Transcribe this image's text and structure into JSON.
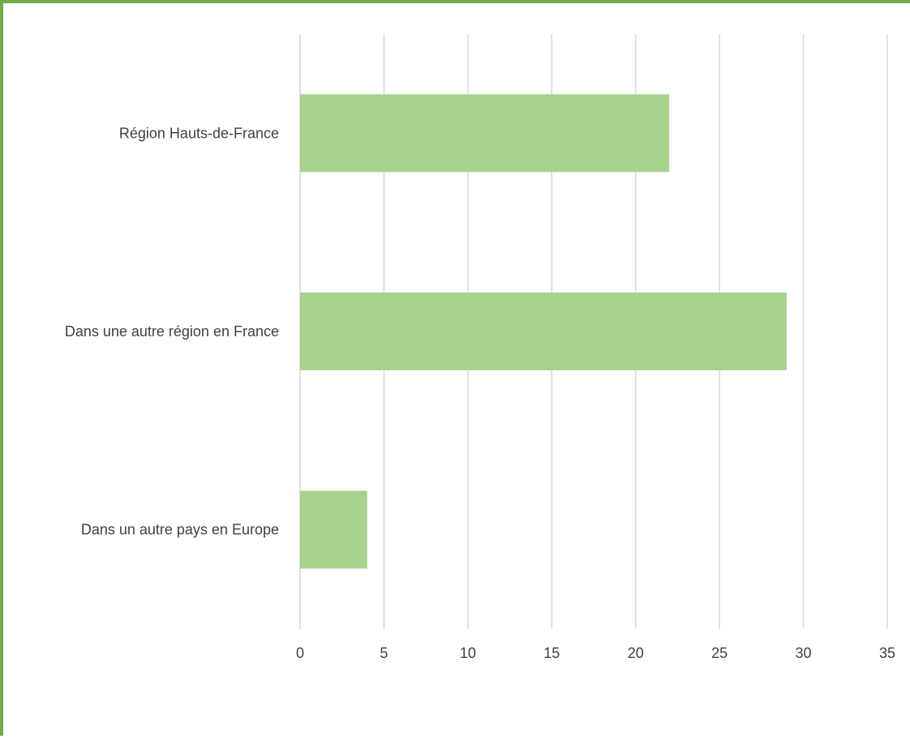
{
  "colors": {
    "frame": "#70ad47",
    "bar": "#a9d18e",
    "grid": "#d9d9d9",
    "text": "#404040"
  },
  "chart_data": {
    "type": "bar",
    "orientation": "horizontal",
    "categories": [
      "Région Hauts-de-France",
      "Dans une autre région en France",
      "Dans un autre pays en Europe"
    ],
    "values": [
      22,
      29,
      4
    ],
    "title": "",
    "xlabel": "",
    "ylabel": "",
    "xlim": [
      0,
      35
    ],
    "xticks": [
      0,
      5,
      10,
      15,
      20,
      25,
      30,
      35
    ],
    "grid": "vertical",
    "legend": "none"
  }
}
